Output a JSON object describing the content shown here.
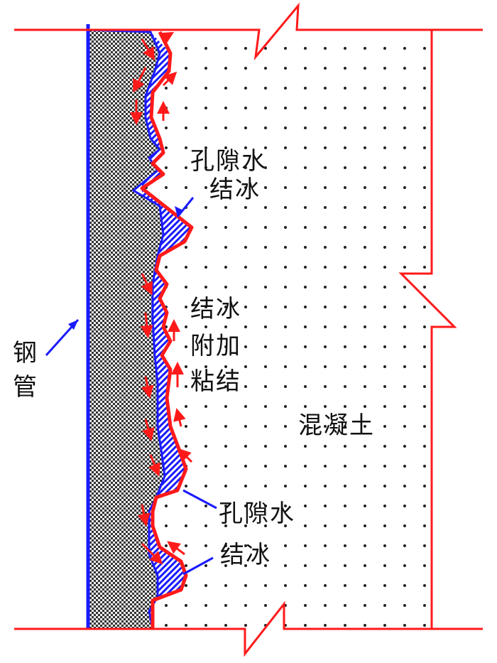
{
  "labels": {
    "pore_water_freeze_top": [
      "孔隙水",
      "结冰"
    ],
    "freeze_additional_bond": [
      "结冰",
      "附加",
      "粘结"
    ],
    "steel_tube": [
      "钢",
      "管"
    ],
    "concrete": "混凝土",
    "pore_water_bottom": "孔隙水",
    "freeze_bottom": "结冰"
  },
  "colors": {
    "boundary": "#ff1a1a",
    "steel_edge": "#1a1aff",
    "ice_hatch": "#1a1aff",
    "steel_fill": "#888888",
    "concrete_dots": "#222222"
  }
}
